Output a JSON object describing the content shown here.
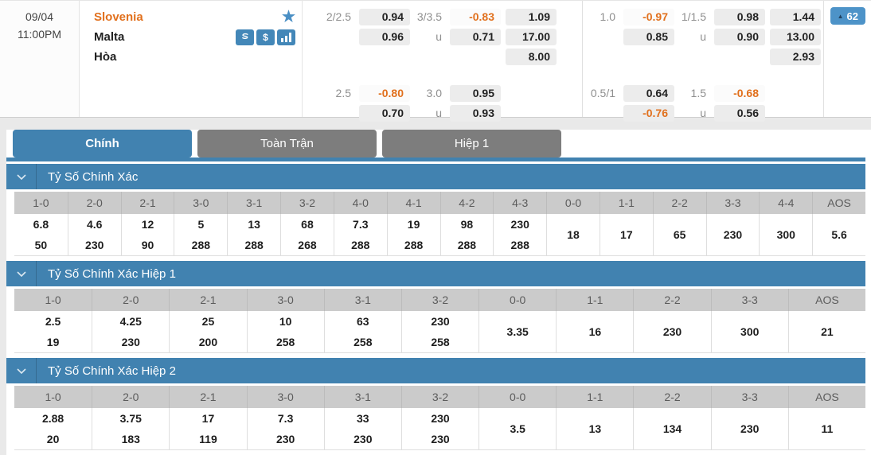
{
  "colors": {
    "blue": "#4182b0",
    "badge-blue": "#4d93c8",
    "icon-blue": "#4387b8",
    "orange": "#e1701d",
    "tab-gray": "#7d7d7d",
    "head-gray": "#cbcbcb",
    "page-bg": "#e9e9e9"
  },
  "match": {
    "date": "09/04",
    "time": "11:00PM",
    "home_team": "Slovenia",
    "away_team": "Malta",
    "draw_label": "Hòa",
    "more_markets_count": "62"
  },
  "odds_panel": {
    "groups": [
      {
        "rows": [
          [
            {
              "label": "2/2.5"
            },
            {
              "box": "0.94"
            },
            {
              "label": "3/3.5"
            },
            {
              "box": "-0.83",
              "neg": true,
              "flash": true
            },
            {
              "box": "1.09"
            }
          ],
          [
            {},
            {
              "box": "0.96"
            },
            {
              "label": "u"
            },
            {
              "box": "0.71"
            },
            {
              "box": "17.00"
            }
          ],
          [
            {},
            {},
            {},
            {},
            {
              "box": "8.00"
            }
          ]
        ]
      },
      {
        "rows": [
          [
            {
              "label": "2.5"
            },
            {
              "box": "-0.80",
              "neg": true,
              "flash": true
            },
            {
              "label": "3.0"
            },
            {
              "box": "0.95"
            },
            {}
          ],
          [
            {},
            {
              "box": "0.70"
            },
            {
              "label": "u"
            },
            {
              "box": "0.93"
            },
            {}
          ]
        ]
      },
      {
        "rows": [
          [
            {
              "label": "1.0"
            },
            {
              "box": "-0.97",
              "neg": true,
              "flash": true
            },
            {
              "label": "1/1.5"
            },
            {
              "box": "0.98"
            },
            {
              "box": "1.44"
            }
          ],
          [
            {},
            {
              "box": "0.85"
            },
            {
              "label": "u"
            },
            {
              "box": "0.90"
            },
            {
              "box": "13.00"
            }
          ],
          [
            {},
            {},
            {},
            {},
            {
              "box": "2.93"
            }
          ]
        ]
      },
      {
        "rows": [
          [
            {
              "label": "0.5/1"
            },
            {
              "box": "0.64"
            },
            {
              "label": "1.5"
            },
            {
              "box": "-0.68",
              "neg": true,
              "flash": true
            },
            {}
          ],
          [
            {},
            {
              "box": "-0.76",
              "neg": true
            },
            {
              "label": "u"
            },
            {
              "box": "0.56"
            },
            {}
          ]
        ]
      }
    ]
  },
  "tabs": [
    {
      "label": "Chính",
      "active": true
    },
    {
      "label": "Toàn Trận",
      "active": false
    },
    {
      "label": "Hiệp 1",
      "active": false
    }
  ],
  "score_tables": [
    {
      "title": "Tỷ Số Chính Xác",
      "columns": [
        {
          "score": "1-0",
          "values": [
            "6.8",
            "50"
          ]
        },
        {
          "score": "2-0",
          "values": [
            "4.6",
            "230"
          ]
        },
        {
          "score": "2-1",
          "values": [
            "12",
            "90"
          ]
        },
        {
          "score": "3-0",
          "values": [
            "5",
            "288"
          ]
        },
        {
          "score": "3-1",
          "values": [
            "13",
            "288"
          ]
        },
        {
          "score": "3-2",
          "values": [
            "68",
            "268"
          ]
        },
        {
          "score": "4-0",
          "values": [
            "7.3",
            "288"
          ]
        },
        {
          "score": "4-1",
          "values": [
            "19",
            "288"
          ]
        },
        {
          "score": "4-2",
          "values": [
            "98",
            "288"
          ]
        },
        {
          "score": "4-3",
          "values": [
            "230",
            "288"
          ]
        },
        {
          "score": "0-0",
          "values": [
            "18"
          ]
        },
        {
          "score": "1-1",
          "values": [
            "17"
          ]
        },
        {
          "score": "2-2",
          "values": [
            "65"
          ]
        },
        {
          "score": "3-3",
          "values": [
            "230"
          ]
        },
        {
          "score": "4-4",
          "values": [
            "300"
          ]
        },
        {
          "score": "AOS",
          "values": [
            "5.6"
          ]
        }
      ]
    },
    {
      "title": "Tỷ Số Chính Xác Hiệp 1",
      "columns": [
        {
          "score": "1-0",
          "values": [
            "2.5",
            "19"
          ]
        },
        {
          "score": "2-0",
          "values": [
            "4.25",
            "230"
          ]
        },
        {
          "score": "2-1",
          "values": [
            "25",
            "200"
          ]
        },
        {
          "score": "3-0",
          "values": [
            "10",
            "258"
          ]
        },
        {
          "score": "3-1",
          "values": [
            "63",
            "258"
          ]
        },
        {
          "score": "3-2",
          "values": [
            "230",
            "258"
          ]
        },
        {
          "score": "0-0",
          "values": [
            "3.35"
          ]
        },
        {
          "score": "1-1",
          "values": [
            "16"
          ]
        },
        {
          "score": "2-2",
          "values": [
            "230"
          ]
        },
        {
          "score": "3-3",
          "values": [
            "300"
          ]
        },
        {
          "score": "AOS",
          "values": [
            "21"
          ]
        }
      ]
    },
    {
      "title": "Tỷ Số Chính Xác Hiệp 2",
      "columns": [
        {
          "score": "1-0",
          "values": [
            "2.88",
            "20"
          ]
        },
        {
          "score": "2-0",
          "values": [
            "3.75",
            "183"
          ]
        },
        {
          "score": "2-1",
          "values": [
            "17",
            "119"
          ]
        },
        {
          "score": "3-0",
          "values": [
            "7.3",
            "230"
          ]
        },
        {
          "score": "3-1",
          "values": [
            "33",
            "230"
          ]
        },
        {
          "score": "3-2",
          "values": [
            "230",
            "230"
          ]
        },
        {
          "score": "0-0",
          "values": [
            "3.5"
          ]
        },
        {
          "score": "1-1",
          "values": [
            "13"
          ]
        },
        {
          "score": "2-2",
          "values": [
            "134"
          ]
        },
        {
          "score": "3-3",
          "values": [
            "230"
          ]
        },
        {
          "score": "AOS",
          "values": [
            "11"
          ]
        }
      ]
    }
  ]
}
